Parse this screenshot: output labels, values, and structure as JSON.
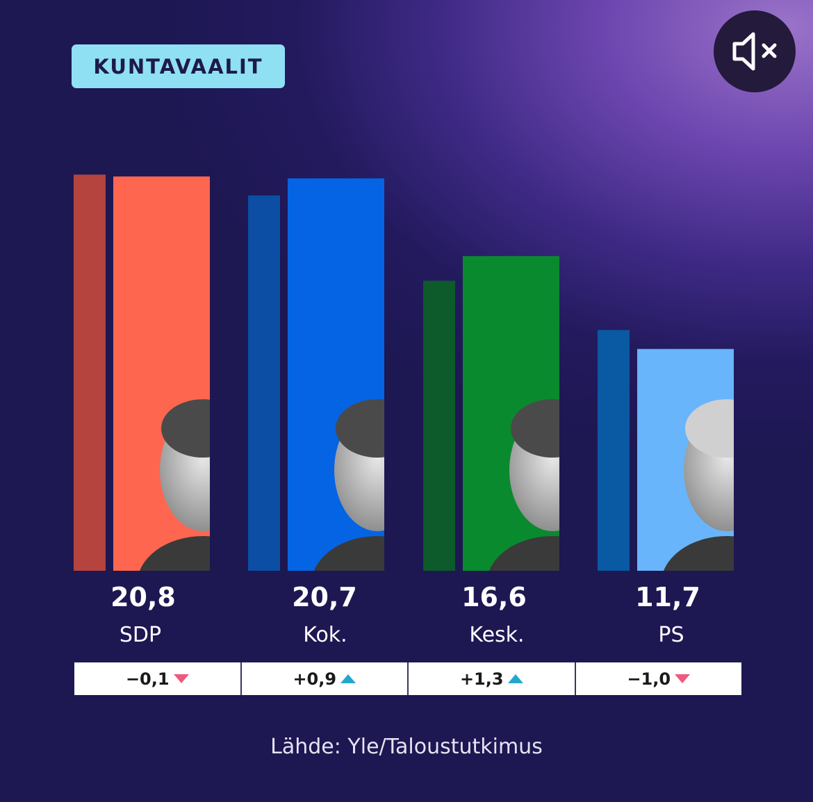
{
  "header": {
    "tag": "KUNTAVAALIT"
  },
  "icons": {
    "mute": "speaker-muted-icon"
  },
  "chart_data": {
    "type": "bar",
    "categories": [
      "SDP",
      "Kok.",
      "Kesk.",
      "PS"
    ],
    "series": [
      {
        "values": [
          20.9,
          19.8,
          15.3,
          12.7
        ],
        "colors": [
          "#b4443d",
          "#0b4ea4",
          "#0d5a2b",
          "#0a59a3"
        ]
      },
      {
        "values": [
          20.8,
          20.7,
          16.6,
          11.7
        ],
        "colors": [
          "#ff6650",
          "#0564e4",
          "#0a8a2e",
          "#68b5fb"
        ]
      }
    ],
    "value_labels": [
      "20,8",
      "20,7",
      "16,6",
      "11,7"
    ],
    "changes": [
      {
        "text": "−0,1",
        "direction": "down"
      },
      {
        "text": "+0,9",
        "direction": "up"
      },
      {
        "text": "+1,3",
        "direction": "up"
      },
      {
        "text": "−1,0",
        "direction": "down"
      }
    ],
    "colors": {
      "up": "#22a7cc",
      "down": "#f0597f"
    },
    "source": "Lähde: Yle/Taloustutkimus"
  }
}
